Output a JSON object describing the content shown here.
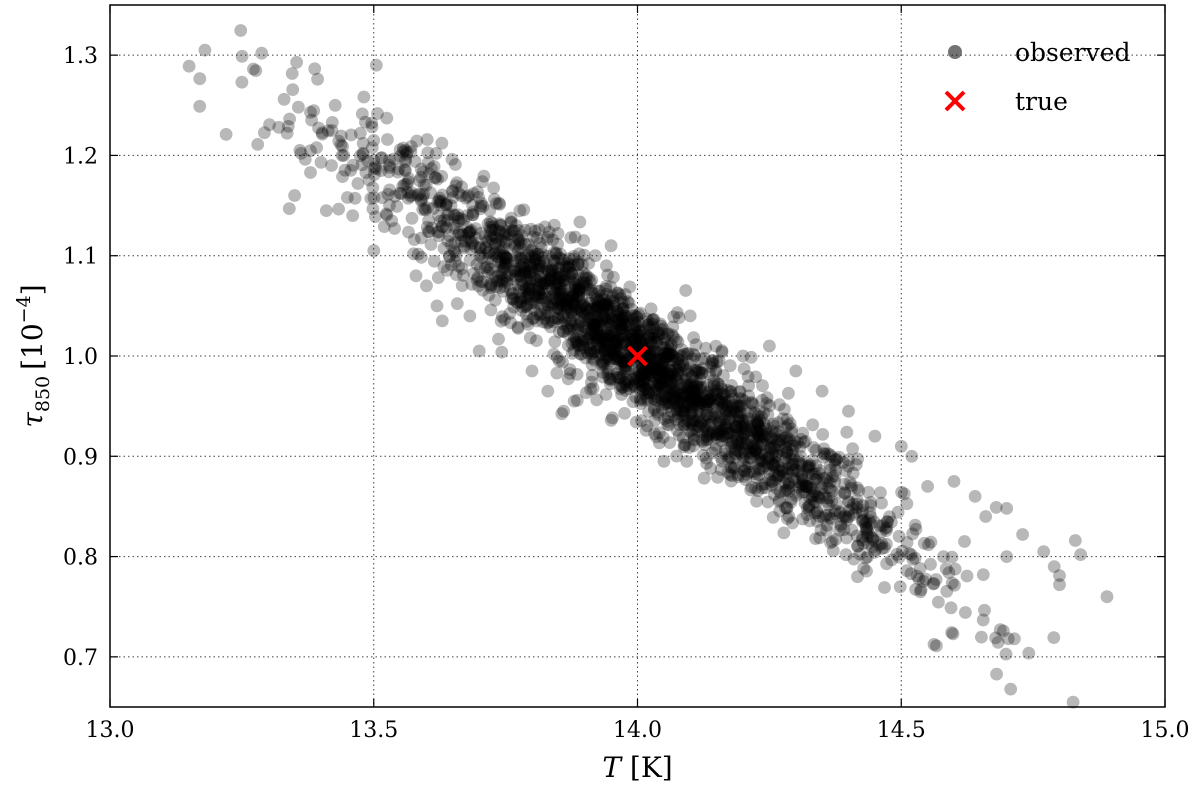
{
  "chart_data": {
    "type": "scatter",
    "title": "",
    "xlabel": {
      "symbol": "T",
      "unit": " [K]"
    },
    "ylabel": {
      "symbol": "τ",
      "subscript": "850",
      "unit_base": "[10",
      "unit_exp": "−4",
      "unit_close": "]"
    },
    "xlim": [
      13.0,
      15.0
    ],
    "ylim": [
      0.65,
      1.35
    ],
    "xticks": [
      13.0,
      13.5,
      14.0,
      14.5,
      15.0
    ],
    "xtick_labels": [
      "13.0",
      "13.5",
      "14.0",
      "14.5",
      "15.0"
    ],
    "yticks": [
      0.7,
      0.8,
      0.9,
      1.0,
      1.1,
      1.2,
      1.3
    ],
    "ytick_labels": [
      "0.7",
      "0.8",
      "0.9",
      "1.0",
      "1.1",
      "1.2",
      "1.3"
    ],
    "grid": true,
    "legend_position": "top-right",
    "series": [
      {
        "name": "observed",
        "marker": "circle",
        "color": "#000000",
        "opacity": 0.28,
        "distribution": {
          "center": [
            14.0,
            1.0
          ],
          "correlation": -0.96,
          "sd_x": 0.25,
          "sd_y": 0.1,
          "n_points": 2400
        },
        "points": [
          [
            13.15,
            1.289
          ],
          [
            13.18,
            1.305
          ],
          [
            13.17,
            1.249
          ],
          [
            13.25,
            1.273
          ],
          [
            13.22,
            1.221
          ],
          [
            13.28,
            1.211
          ],
          [
            13.32,
            1.228
          ],
          [
            13.33,
            1.256
          ],
          [
            13.38,
            1.243
          ],
          [
            13.34,
            1.147
          ],
          [
            13.35,
            1.16
          ],
          [
            13.36,
            1.205
          ],
          [
            13.37,
            1.196
          ],
          [
            13.38,
            1.183
          ],
          [
            13.4,
            1.193
          ],
          [
            13.41,
            1.145
          ],
          [
            13.42,
            1.19
          ],
          [
            13.44,
            1.2
          ],
          [
            13.45,
            1.158
          ],
          [
            13.46,
            1.14
          ],
          [
            13.47,
            1.172
          ],
          [
            13.48,
            1.212
          ],
          [
            13.5,
            1.215
          ],
          [
            13.5,
            1.105
          ],
          [
            13.52,
            1.129
          ],
          [
            13.55,
            1.199
          ],
          [
            13.56,
            1.185
          ],
          [
            13.58,
            1.08
          ],
          [
            13.6,
            1.07
          ],
          [
            13.62,
            1.05
          ],
          [
            13.63,
            1.035
          ],
          [
            13.65,
            1.165
          ],
          [
            13.68,
            1.16
          ],
          [
            13.7,
            1.005
          ],
          [
            13.72,
            1.145
          ],
          [
            13.78,
            1.12
          ],
          [
            13.8,
            0.985
          ],
          [
            13.83,
            0.965
          ],
          [
            13.86,
            0.945
          ],
          [
            13.88,
            0.955
          ],
          [
            13.92,
            1.1
          ],
          [
            13.95,
            1.11
          ],
          [
            14.1,
            1.04
          ],
          [
            14.1,
            0.925
          ],
          [
            14.05,
            0.895
          ],
          [
            14.2,
            1.0
          ],
          [
            14.25,
            1.01
          ],
          [
            14.3,
            0.985
          ],
          [
            14.35,
            0.965
          ],
          [
            14.4,
            0.945
          ],
          [
            14.45,
            0.92
          ],
          [
            14.5,
            0.91
          ],
          [
            14.52,
            0.9
          ],
          [
            14.55,
            0.87
          ],
          [
            14.6,
            0.875
          ],
          [
            14.58,
            0.8
          ],
          [
            14.62,
            0.815
          ],
          [
            14.64,
            0.86
          ],
          [
            14.66,
            0.84
          ],
          [
            14.68,
            0.849
          ],
          [
            14.7,
            0.848
          ],
          [
            14.7,
            0.8
          ],
          [
            14.73,
            0.822
          ],
          [
            14.77,
            0.805
          ],
          [
            14.79,
            0.79
          ],
          [
            14.8,
            0.781
          ],
          [
            14.8,
            0.772
          ],
          [
            14.83,
            0.816
          ],
          [
            14.84,
            0.802
          ],
          [
            14.89,
            0.76
          ]
        ]
      },
      {
        "name": "true",
        "marker": "x",
        "color": "#ff0000",
        "points": [
          [
            14.0,
            1.0
          ]
        ]
      }
    ]
  }
}
